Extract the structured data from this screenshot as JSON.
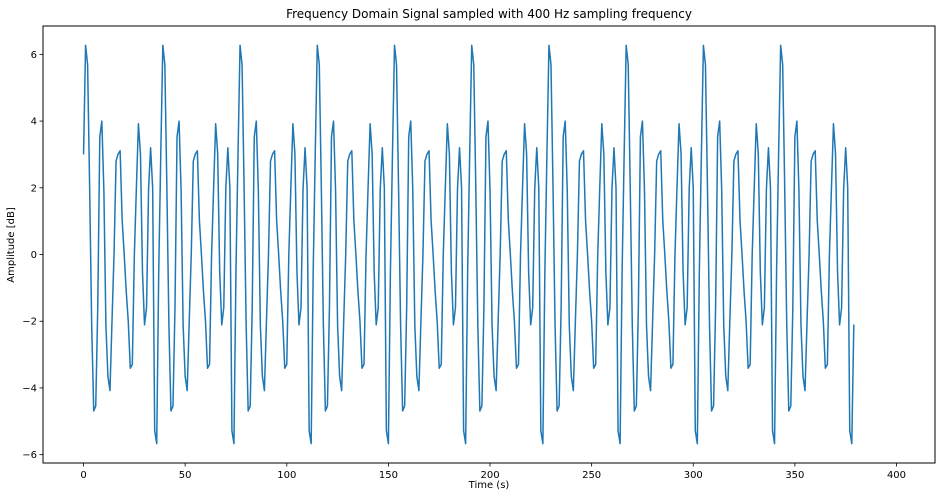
{
  "chart_data": {
    "type": "line",
    "title": "Frequency Domain Signal sampled with 400 Hz sampling frequency",
    "xlabel": "Time (s)",
    "ylabel": "Amplitude [dB]",
    "xlim": [
      -19.95,
      418.95
    ],
    "ylim": [
      -6.25,
      6.85
    ],
    "x_ticks": [
      0,
      50,
      100,
      150,
      200,
      250,
      300,
      350,
      400
    ],
    "x_tick_labels": [
      "0",
      "50",
      "100",
      "150",
      "200",
      "250",
      "300",
      "350",
      "400"
    ],
    "y_ticks": [
      -6,
      -4,
      -2,
      0,
      2,
      4,
      6
    ],
    "y_tick_labels": [
      "−6",
      "−4",
      "−2",
      "0",
      "2",
      "4",
      "6"
    ],
    "grid": false,
    "legend": "none",
    "series": [
      {
        "color": "#1f77b4",
        "x_start": 0,
        "x_step": 1,
        "values": [
          3.0,
          6.27,
          5.69,
          2.0,
          -2.1,
          -4.69,
          -4.54,
          -1.56,
          3.53,
          4.0,
          1.93,
          -2.12,
          -3.65,
          -4.08,
          -2.0,
          0.01,
          2.8,
          3.01,
          3.11,
          1.03,
          0.01,
          -1.1,
          -2.0,
          -3.41,
          -3.29,
          -0.01,
          2.0,
          3.92,
          3.02,
          -0.52,
          -2.11,
          -1.59,
          1.97,
          3.2,
          2.0,
          -5.28,
          -5.67,
          -0.48,
          3.0,
          6.27,
          5.69,
          2.0,
          -2.1,
          -4.69,
          -4.54,
          -1.56,
          3.53,
          4.0,
          1.93,
          -2.12,
          -3.65,
          -4.08,
          -2.0,
          0.01,
          2.8,
          3.01,
          3.11,
          1.03,
          0.01,
          -1.1,
          -2.0,
          -3.41,
          -3.29,
          -0.01,
          2.0,
          3.92,
          3.02,
          -0.52,
          -2.11,
          -1.59,
          1.97,
          3.2,
          2.0,
          -5.28,
          -5.67,
          -0.48,
          3.0,
          6.27,
          5.69,
          2.0,
          -2.1,
          -4.69,
          -4.54,
          -1.56,
          3.53,
          4.0,
          1.93,
          -2.12,
          -3.65,
          -4.08,
          -2.0,
          0.01,
          2.8,
          3.01,
          3.11,
          1.03,
          0.01,
          -1.1,
          -2.0,
          -3.41,
          -3.29,
          -0.01,
          2.0,
          3.92,
          3.02,
          -0.52,
          -2.11,
          -1.59,
          1.97,
          3.2,
          2.0,
          -5.28,
          -5.67,
          -0.48,
          3.0,
          6.27,
          5.69,
          2.0,
          -2.1,
          -4.69,
          -4.54,
          -1.56,
          3.53,
          4.0,
          1.93,
          -2.12,
          -3.65,
          -4.08,
          -2.0,
          0.01,
          2.8,
          3.01,
          3.11,
          1.03,
          0.01,
          -1.1,
          -2.0,
          -3.41,
          -3.29,
          -0.01,
          2.0,
          3.92,
          3.02,
          -0.52,
          -2.11,
          -1.59,
          1.97,
          3.2,
          2.0,
          -5.28,
          -5.67,
          -0.48,
          3.0,
          6.27,
          5.69,
          2.0,
          -2.1,
          -4.69,
          -4.54,
          -1.56,
          3.53,
          4.0,
          1.93,
          -2.12,
          -3.65,
          -4.08,
          -2.0,
          0.01,
          2.8,
          3.01,
          3.11,
          1.03,
          0.01,
          -1.1,
          -2.0,
          -3.41,
          -3.29,
          -0.01,
          2.0,
          3.92,
          3.02,
          -0.52,
          -2.11,
          -1.59,
          1.97,
          3.2,
          2.0,
          -5.28,
          -5.67,
          -0.48,
          3.0,
          6.27,
          5.69,
          2.0,
          -2.1,
          -4.69,
          -4.54,
          -1.56,
          3.53,
          4.0,
          1.93,
          -2.12,
          -3.65,
          -4.08,
          -2.0,
          0.01,
          2.8,
          3.01,
          3.11,
          1.03,
          0.01,
          -1.1,
          -2.0,
          -3.41,
          -3.29,
          -0.01,
          2.0,
          3.92,
          3.02,
          -0.52,
          -2.11,
          -1.59,
          1.97,
          3.2,
          2.0,
          -5.28,
          -5.67,
          -0.48,
          3.0,
          6.27,
          5.69,
          2.0,
          -2.1,
          -4.69,
          -4.54,
          -1.56,
          3.53,
          4.0,
          1.93,
          -2.12,
          -3.65,
          -4.08,
          -2.0,
          0.01,
          2.8,
          3.01,
          3.11,
          1.03,
          0.01,
          -1.1,
          -2.0,
          -3.41,
          -3.29,
          -0.01,
          2.0,
          3.92,
          3.02,
          -0.52,
          -2.11,
          -1.59,
          1.97,
          3.2,
          2.0,
          -5.28,
          -5.67,
          -0.48,
          3.0,
          6.27,
          5.69,
          2.0,
          -2.1,
          -4.69,
          -4.54,
          -1.56,
          3.53,
          4.0,
          1.93,
          -2.12,
          -3.65,
          -4.08,
          -2.0,
          0.01,
          2.8,
          3.01,
          3.11,
          1.03,
          0.01,
          -1.1,
          -2.0,
          -3.41,
          -3.29,
          -0.01,
          2.0,
          3.92,
          3.02,
          -0.52,
          -2.11,
          -1.59,
          1.97,
          3.2,
          2.0,
          -5.28,
          -5.67,
          -0.48,
          3.0,
          6.27,
          5.69,
          2.0,
          -2.1,
          -4.69,
          -4.54,
          -1.56,
          3.53,
          4.0,
          1.93,
          -2.12,
          -3.65,
          -4.08,
          -2.0,
          0.01,
          2.8,
          3.01,
          3.11,
          1.03,
          0.01,
          -1.1,
          -2.0,
          -3.41,
          -3.29,
          -0.01,
          2.0,
          3.92,
          3.02,
          -0.52,
          -2.11,
          -1.59,
          1.97,
          3.2,
          2.0,
          -5.28,
          -5.67,
          -0.48,
          3.0,
          6.27,
          5.69,
          2.0,
          -2.1,
          -4.69,
          -4.54,
          -1.56,
          3.53,
          4.0,
          1.93,
          -2.12,
          -3.65,
          -4.08,
          -2.0,
          0.01,
          2.8,
          3.01,
          3.11,
          1.03,
          0.01,
          -1.1,
          -2.0,
          -3.41,
          -3.29,
          -0.01,
          2.0,
          3.92,
          3.02,
          -0.52,
          -2.11,
          -1.59,
          1.97,
          3.2,
          2.0,
          -5.28,
          -5.67,
          -2.1
        ]
      }
    ]
  }
}
